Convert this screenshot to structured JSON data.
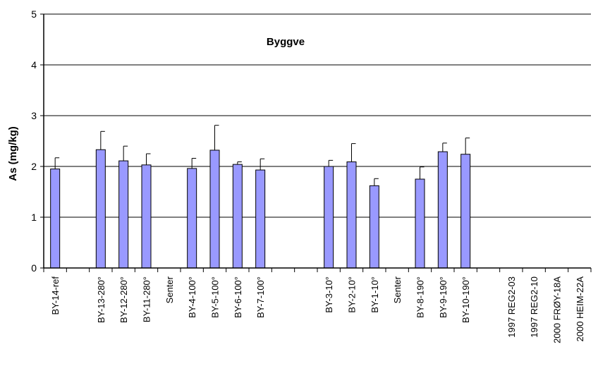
{
  "chart_data": {
    "type": "bar",
    "title": "Byggve",
    "xlabel": "",
    "ylabel": "As (mg/kg)",
    "ylim": [
      0,
      5
    ],
    "yticks": [
      0,
      1,
      2,
      3,
      4,
      5
    ],
    "grid": true,
    "legend": "none",
    "bar_color": "#9999ff",
    "categories": [
      "BY-14-ref",
      "",
      "BY-13-280°",
      "BY-12-280°",
      "BY-11-280°",
      "Senter",
      "BY-4-100°",
      "BY-5-100°",
      "BY-6-100°",
      "BY-7-100°",
      "",
      "",
      "BY-3-10°",
      "BY-2-10°",
      "BY-1-10°",
      "Senter",
      "BY-8-190°",
      "BY-9-190°",
      "BY-10-190°",
      "",
      "1997 REG2-03",
      "1997 REG2-10",
      "2000 FRØY-18A",
      "2000 HEIM-22A"
    ],
    "values": [
      1.95,
      null,
      2.33,
      2.11,
      2.03,
      null,
      1.96,
      2.32,
      2.04,
      1.93,
      null,
      null,
      2.0,
      2.09,
      1.62,
      null,
      1.75,
      2.29,
      2.24,
      null,
      null,
      null,
      null,
      null
    ],
    "errors": [
      0.22,
      null,
      0.36,
      0.29,
      0.22,
      null,
      0.2,
      0.49,
      0.05,
      0.22,
      null,
      null,
      0.12,
      0.36,
      0.14,
      null,
      0.24,
      0.17,
      0.32,
      null,
      null,
      null,
      null,
      null
    ]
  }
}
